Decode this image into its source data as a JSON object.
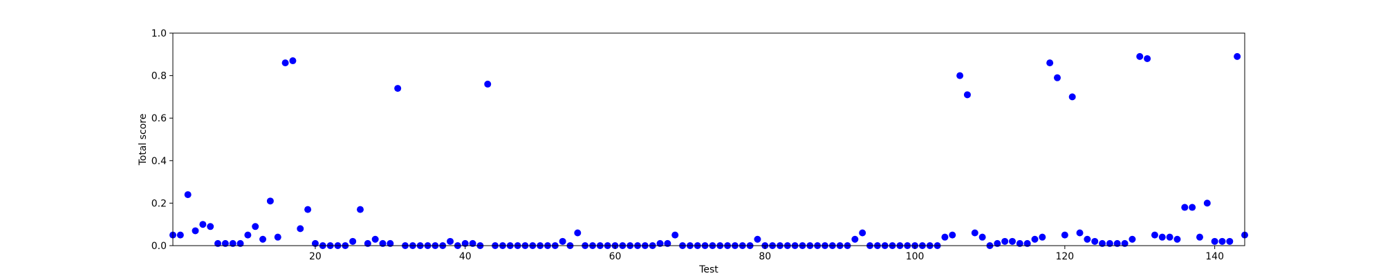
{
  "chart_data": {
    "type": "scatter",
    "xlabel": "Test",
    "ylabel": "Total score",
    "xlim": [
      1,
      144
    ],
    "ylim": [
      0,
      1.0
    ],
    "xticks": [
      20,
      40,
      60,
      80,
      100,
      120,
      140
    ],
    "xtick_labels": [
      "20",
      "40",
      "60",
      "80",
      "100",
      "120",
      "140"
    ],
    "yticks": [
      0.0,
      0.2,
      0.4,
      0.6,
      0.8,
      1.0
    ],
    "ytick_labels": [
      "0.0",
      "0.2",
      "0.4",
      "0.6",
      "0.8",
      "1.0"
    ],
    "grid": false,
    "marker_color": "#0000ff",
    "x": [
      1,
      2,
      3,
      4,
      5,
      6,
      7,
      8,
      9,
      10,
      11,
      12,
      13,
      14,
      15,
      16,
      17,
      18,
      19,
      20,
      21,
      22,
      23,
      24,
      25,
      26,
      27,
      28,
      29,
      30,
      31,
      32,
      33,
      34,
      35,
      36,
      37,
      38,
      39,
      40,
      41,
      42,
      43,
      44,
      45,
      46,
      47,
      48,
      49,
      50,
      51,
      52,
      53,
      54,
      55,
      56,
      57,
      58,
      59,
      60,
      61,
      62,
      63,
      64,
      65,
      66,
      67,
      68,
      69,
      70,
      71,
      72,
      73,
      74,
      75,
      76,
      77,
      78,
      79,
      80,
      81,
      82,
      83,
      84,
      85,
      86,
      87,
      88,
      89,
      90,
      91,
      92,
      93,
      94,
      95,
      96,
      97,
      98,
      99,
      100,
      101,
      102,
      103,
      104,
      105,
      106,
      107,
      108,
      109,
      110,
      111,
      112,
      113,
      114,
      115,
      116,
      117,
      118,
      119,
      120,
      121,
      122,
      123,
      124,
      125,
      126,
      127,
      128,
      129,
      130,
      131,
      132,
      133,
      134,
      135,
      136,
      137,
      138,
      139,
      140,
      141,
      142,
      143,
      144
    ],
    "y": [
      0.05,
      0.05,
      0.24,
      0.07,
      0.1,
      0.09,
      0.01,
      0.01,
      0.01,
      0.01,
      0.05,
      0.09,
      0.03,
      0.21,
      0.04,
      0.86,
      0.87,
      0.08,
      0.17,
      0.01,
      0.0,
      0.0,
      0.0,
      0.0,
      0.02,
      0.17,
      0.01,
      0.03,
      0.01,
      0.01,
      0.74,
      0.0,
      0.0,
      0.0,
      0.0,
      0.0,
      0.0,
      0.02,
      0.0,
      0.01,
      0.01,
      0.0,
      0.76,
      0.0,
      0.0,
      0.0,
      0.0,
      0.0,
      0.0,
      0.0,
      0.0,
      0.0,
      0.02,
      0.0,
      0.06,
      0.0,
      0.0,
      0.0,
      0.0,
      0.0,
      0.0,
      0.0,
      0.0,
      0.0,
      0.0,
      0.01,
      0.01,
      0.05,
      0.0,
      0.0,
      0.0,
      0.0,
      0.0,
      0.0,
      0.0,
      0.0,
      0.0,
      0.0,
      0.03,
      0.0,
      0.0,
      0.0,
      0.0,
      0.0,
      0.0,
      0.0,
      0.0,
      0.0,
      0.0,
      0.0,
      0.0,
      0.03,
      0.06,
      0.0,
      0.0,
      0.0,
      0.0,
      0.0,
      0.0,
      0.0,
      0.0,
      0.0,
      0.0,
      0.04,
      0.05,
      0.8,
      0.71,
      0.06,
      0.04,
      0.0,
      0.01,
      0.02,
      0.02,
      0.01,
      0.01,
      0.03,
      0.04,
      0.86,
      0.79,
      0.05,
      0.7,
      0.06,
      0.03,
      0.02,
      0.01,
      0.01,
      0.01,
      0.01,
      0.03,
      0.89,
      0.88,
      0.05,
      0.04,
      0.04,
      0.03,
      0.18,
      0.18,
      0.04,
      0.2,
      0.02,
      0.02,
      0.02,
      0.89,
      0.05
    ]
  }
}
